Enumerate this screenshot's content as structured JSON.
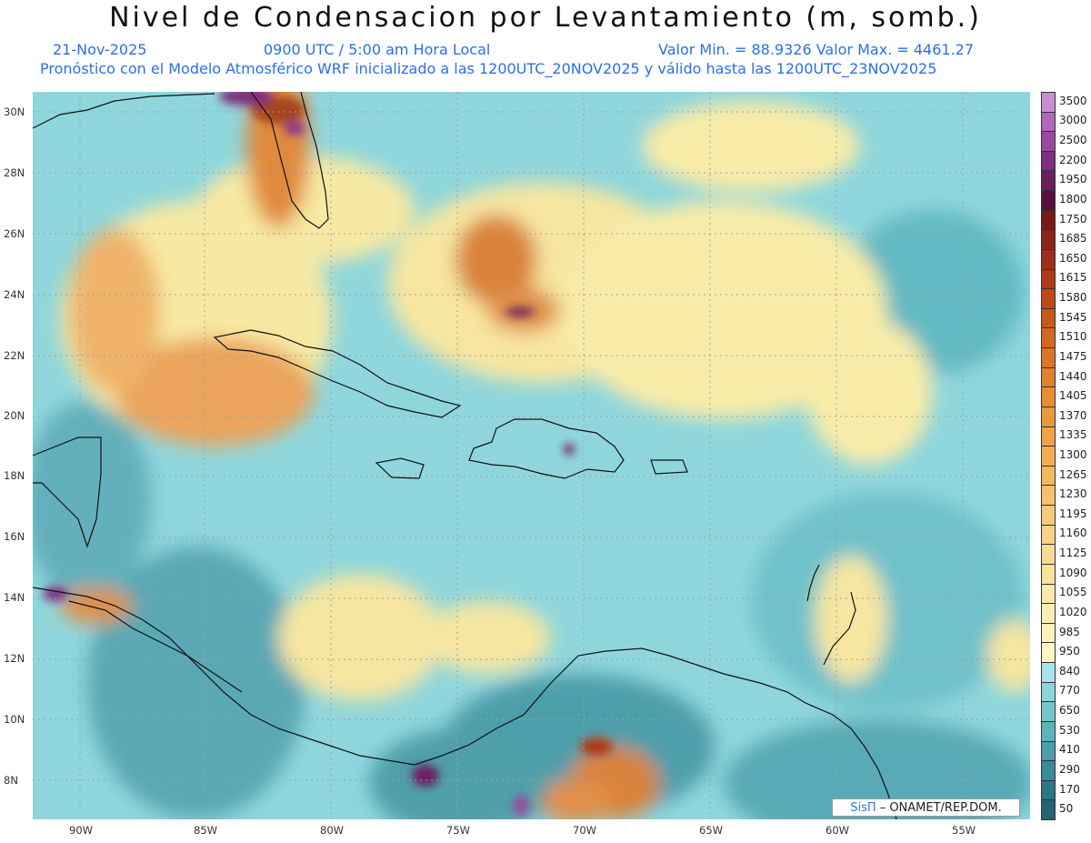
{
  "header": {
    "title": "Nivel de Condensacion por Levantamiento (m, somb.)",
    "date": "21-Nov-2025",
    "time": "0900 UTC / 5:00 am Hora Local",
    "minmax": "Valor Min. = 88.9326  Valor Max. = 4461.27",
    "forecast": "Pronóstico con el Modelo Atmosférico WRF inicializado a las 1200UTC_20NOV2025 y válido hasta las  1200UTC_23NOV2025"
  },
  "lat_ticks": [
    "30N",
    "28N",
    "26N",
    "24N",
    "22N",
    "20N",
    "18N",
    "16N",
    "14N",
    "12N",
    "10N",
    "8N"
  ],
  "lon_ticks": [
    "90W",
    "85W",
    "80W",
    "75W",
    "70W",
    "65W",
    "60W",
    "55W"
  ],
  "colorbar": {
    "labels": [
      "3500",
      "3000",
      "2500",
      "2200",
      "1950",
      "1800",
      "1750",
      "1685",
      "1650",
      "1615",
      "1580",
      "1545",
      "1510",
      "1475",
      "1440",
      "1405",
      "1370",
      "1335",
      "1300",
      "1265",
      "1230",
      "1195",
      "1160",
      "1125",
      "1090",
      "1055",
      "1020",
      "985",
      "950",
      "840",
      "770",
      "650",
      "530",
      "410",
      "290",
      "170",
      "50"
    ],
    "colors": [
      "#c98ed0",
      "#b067b8",
      "#9a4a9c",
      "#7e2f7e",
      "#6a1f5e",
      "#5a0f3a",
      "#7a1a14",
      "#8c2418",
      "#9c2f18",
      "#ad3a17",
      "#ba4a18",
      "#c65a1a",
      "#d2691e",
      "#da7624",
      "#e0822c",
      "#e68e34",
      "#ea983d",
      "#ee a346",
      "#f2ad52",
      "#f4b75f",
      "#f6c06c",
      "#f7c978",
      "#f8d285",
      "#f9da92",
      "#fae29e",
      "#fbe8aa",
      "#fcedb3",
      "#fdf1bc",
      "#fef5c6",
      "#a6e3e8",
      "#8dd4da",
      "#75c3cb",
      "#5fb1bb",
      "#4b9eaa",
      "#3a8a99",
      "#2c7687",
      "#246474"
    ]
  },
  "credit": {
    "logo": "SisΠ",
    "text": "– ONAMET/REP.DOM."
  }
}
